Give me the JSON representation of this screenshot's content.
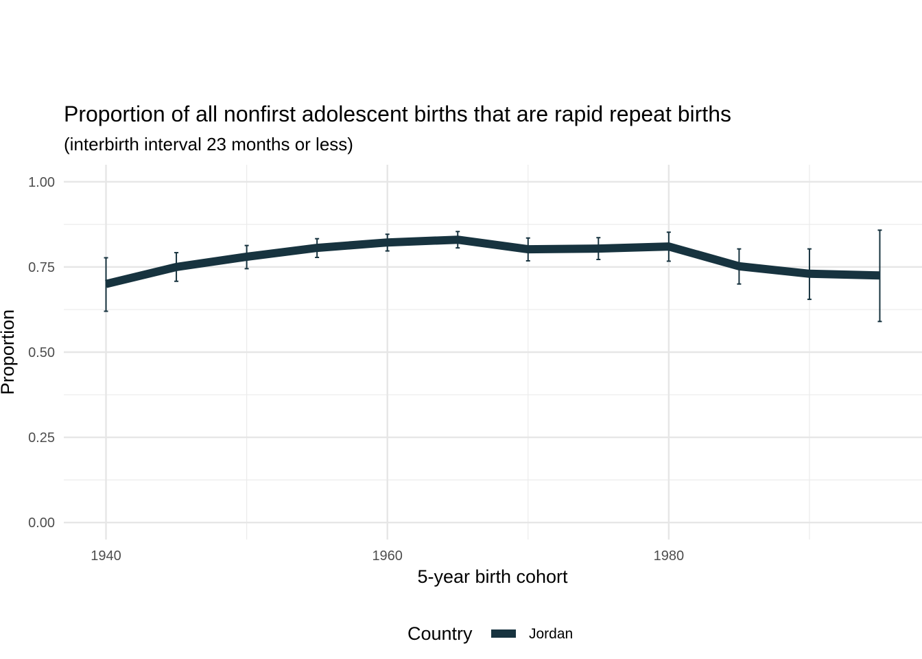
{
  "chart_data": {
    "type": "line",
    "title": "Proportion of all nonfirst adolescent births that are rapid repeat births",
    "subtitle": "(interbirth interval 23 months or less)",
    "xlabel": "5-year birth cohort",
    "ylabel": "Proportion",
    "xlim": [
      1937,
      1998
    ],
    "ylim": [
      -0.05,
      1.05
    ],
    "x_ticks": [
      1940,
      1960,
      1980
    ],
    "x_tick_labels": [
      "1940",
      "1960",
      "1980"
    ],
    "x_minor_ticks": [
      1950,
      1970,
      1990
    ],
    "y_ticks": [
      0.0,
      0.25,
      0.5,
      0.75,
      1.0
    ],
    "y_tick_labels": [
      "0.00",
      "0.25",
      "0.50",
      "0.75",
      "1.00"
    ],
    "y_minor_ticks": [
      0.125,
      0.375,
      0.625,
      0.875
    ],
    "grid": true,
    "legend": {
      "title": "Country",
      "position": "bottom"
    },
    "series": [
      {
        "name": "Jordan",
        "color": "#17333f",
        "x": [
          1940,
          1945,
          1950,
          1955,
          1960,
          1965,
          1970,
          1975,
          1980,
          1985,
          1990,
          1995
        ],
        "values": [
          0.7,
          0.75,
          0.78,
          0.806,
          0.822,
          0.83,
          0.802,
          0.804,
          0.81,
          0.752,
          0.73,
          0.725
        ],
        "error_low": [
          0.62,
          0.708,
          0.745,
          0.778,
          0.797,
          0.806,
          0.768,
          0.772,
          0.767,
          0.7,
          0.655,
          0.59
        ],
        "error_high": [
          0.777,
          0.792,
          0.813,
          0.833,
          0.846,
          0.854,
          0.835,
          0.836,
          0.852,
          0.803,
          0.803,
          0.858
        ]
      }
    ]
  }
}
